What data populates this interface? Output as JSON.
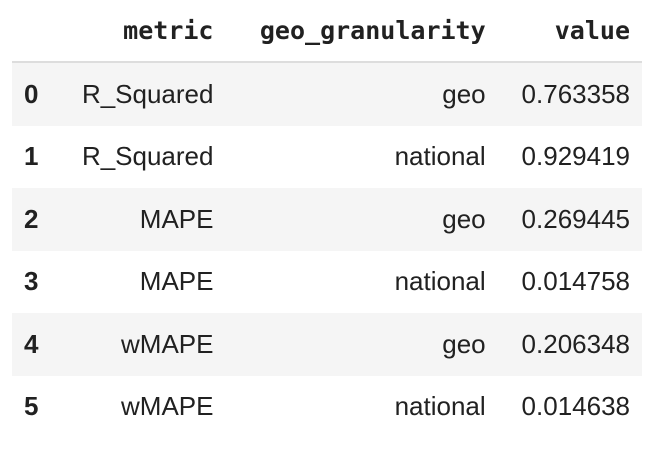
{
  "table": {
    "columns": [
      "",
      "metric",
      "geo_granularity",
      "value"
    ],
    "rows": [
      {
        "index": "0",
        "metric": "R_Squared",
        "geo_granularity": "geo",
        "value": "0.763358"
      },
      {
        "index": "1",
        "metric": "R_Squared",
        "geo_granularity": "national",
        "value": "0.929419"
      },
      {
        "index": "2",
        "metric": "MAPE",
        "geo_granularity": "geo",
        "value": "0.269445"
      },
      {
        "index": "3",
        "metric": "MAPE",
        "geo_granularity": "national",
        "value": "0.014758"
      },
      {
        "index": "4",
        "metric": "wMAPE",
        "geo_granularity": "geo",
        "value": "0.206348"
      },
      {
        "index": "5",
        "metric": "wMAPE",
        "geo_granularity": "national",
        "value": "0.014638"
      }
    ]
  }
}
